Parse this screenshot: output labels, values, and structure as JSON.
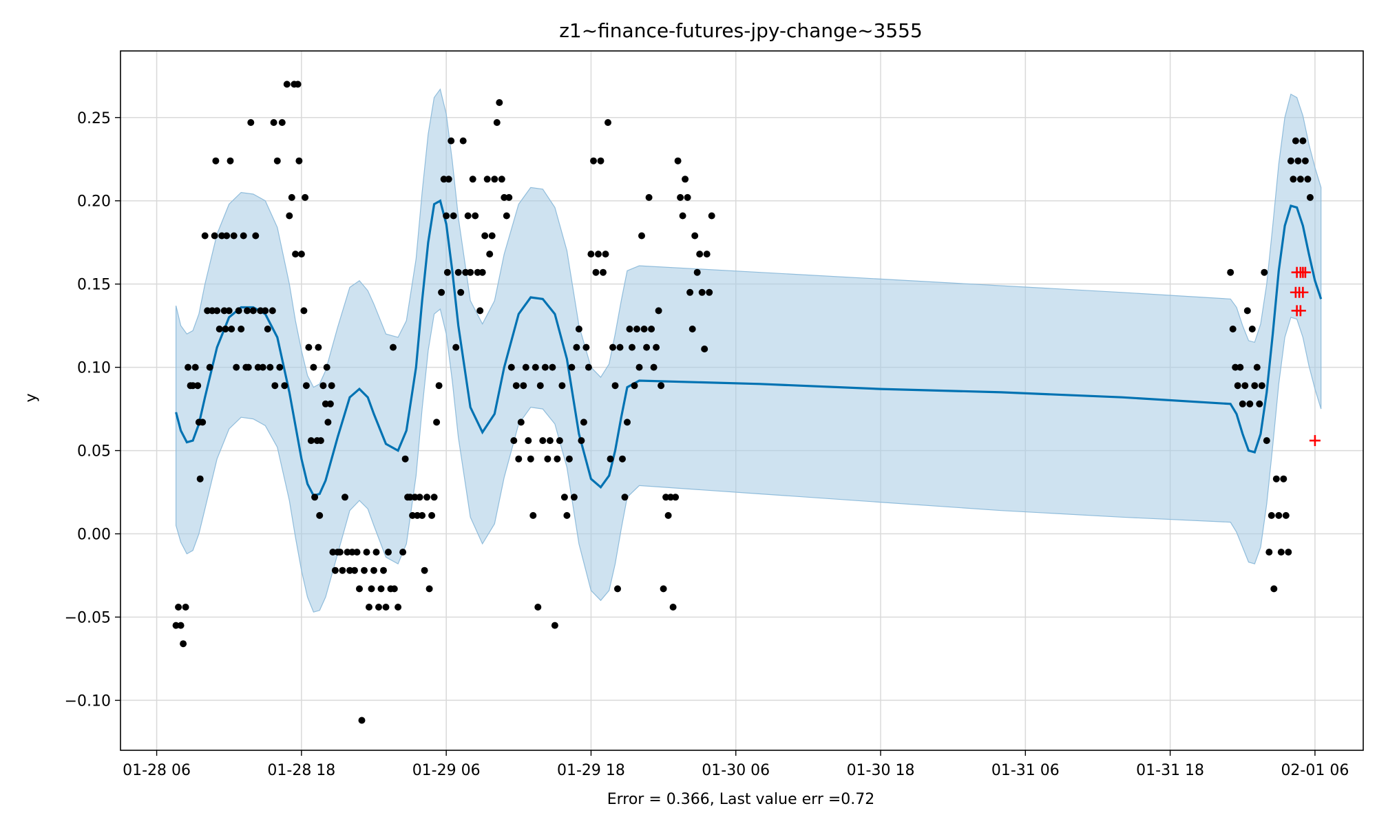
{
  "chart_data": {
    "type": "line",
    "title": "z1~finance-futures-jpy-change~3555",
    "xlabel": "Error = 0.366, Last value err =0.72",
    "ylabel": "y",
    "xlim": [
      -3,
      100
    ],
    "ylim": [
      -0.13,
      0.29
    ],
    "grid": true,
    "colors": {
      "forecast": "#0072b2",
      "band": "#a6cbe3",
      "band_edge": "#8fbcdb",
      "observed": "#000000",
      "holdout": "#ff0000"
    },
    "x_ticks": [
      {
        "x": 0,
        "label": "01-28 06"
      },
      {
        "x": 12,
        "label": "01-28 18"
      },
      {
        "x": 24,
        "label": "01-29 06"
      },
      {
        "x": 36,
        "label": "01-29 18"
      },
      {
        "x": 48,
        "label": "01-30 06"
      },
      {
        "x": 60,
        "label": "01-30 18"
      },
      {
        "x": 72,
        "label": "01-31 06"
      },
      {
        "x": 84,
        "label": "01-31 18"
      },
      {
        "x": 96,
        "label": "02-01 06"
      }
    ],
    "y_ticks": [
      {
        "y": -0.1,
        "label": "−0.10"
      },
      {
        "y": -0.05,
        "label": "−0.05"
      },
      {
        "y": 0.0,
        "label": "0.00"
      },
      {
        "y": 0.05,
        "label": "0.05"
      },
      {
        "y": 0.1,
        "label": "0.10"
      },
      {
        "y": 0.15,
        "label": "0.15"
      },
      {
        "y": 0.2,
        "label": "0.20"
      },
      {
        "y": 0.25,
        "label": "0.25"
      }
    ],
    "forecast": {
      "x": [
        1.6,
        2.0,
        2.5,
        3.0,
        3.5,
        4.0,
        5.0,
        6.0,
        7.0,
        8.0,
        9.0,
        10.0,
        11.0,
        11.5,
        12.0,
        12.5,
        13.0,
        13.5,
        14.0,
        15.0,
        16.0,
        16.8,
        17.5,
        18.0,
        19.0,
        20.0,
        20.7,
        21.5,
        22.0,
        22.5,
        23.0,
        23.5,
        24.0,
        24.5,
        25.0,
        26.0,
        27.0,
        28.0,
        28.8,
        30.0,
        31.0,
        32.0,
        33.0,
        34.0,
        35.0,
        36.0,
        36.8,
        37.5,
        38.0,
        38.5,
        39.0,
        40.0,
        50.0,
        60.0,
        70.0,
        80.0,
        89.0,
        89.5,
        90.0,
        90.5,
        91.0,
        91.5,
        92.0,
        92.5,
        93.0,
        93.5,
        94.0,
        94.5,
        95.0,
        95.5,
        96.0,
        96.5
      ],
      "y": [
        0.073,
        0.062,
        0.055,
        0.056,
        0.066,
        0.082,
        0.112,
        0.13,
        0.136,
        0.136,
        0.132,
        0.118,
        0.085,
        0.065,
        0.045,
        0.03,
        0.023,
        0.024,
        0.032,
        0.058,
        0.082,
        0.087,
        0.082,
        0.072,
        0.054,
        0.05,
        0.062,
        0.1,
        0.14,
        0.175,
        0.198,
        0.2,
        0.186,
        0.158,
        0.125,
        0.076,
        0.061,
        0.072,
        0.1,
        0.132,
        0.142,
        0.141,
        0.132,
        0.105,
        0.06,
        0.033,
        0.028,
        0.035,
        0.05,
        0.07,
        0.088,
        0.092,
        0.09,
        0.087,
        0.085,
        0.082,
        0.078,
        0.072,
        0.06,
        0.05,
        0.049,
        0.06,
        0.085,
        0.12,
        0.158,
        0.185,
        0.197,
        0.196,
        0.185,
        0.168,
        0.152,
        0.141
      ]
    },
    "band": {
      "x": [
        1.6,
        2.0,
        2.5,
        3.0,
        3.5,
        4.0,
        5.0,
        6.0,
        7.0,
        8.0,
        9.0,
        10.0,
        11.0,
        11.5,
        12.0,
        12.5,
        13.0,
        13.5,
        14.0,
        15.0,
        16.0,
        16.8,
        17.5,
        18.0,
        19.0,
        20.0,
        20.7,
        21.5,
        22.0,
        22.5,
        23.0,
        23.5,
        24.0,
        24.5,
        25.0,
        26.0,
        27.0,
        28.0,
        28.8,
        30.0,
        31.0,
        32.0,
        33.0,
        34.0,
        35.0,
        36.0,
        36.8,
        37.5,
        38.0,
        38.5,
        39.0,
        40.0,
        50.0,
        60.0,
        70.0,
        80.0,
        89.0,
        89.5,
        90.0,
        90.5,
        91.0,
        91.5,
        92.0,
        92.5,
        93.0,
        93.5,
        94.0,
        94.5,
        95.0,
        95.5,
        96.0,
        96.5
      ],
      "upper": [
        0.137,
        0.125,
        0.12,
        0.122,
        0.132,
        0.15,
        0.18,
        0.198,
        0.205,
        0.204,
        0.2,
        0.184,
        0.15,
        0.128,
        0.11,
        0.095,
        0.088,
        0.09,
        0.098,
        0.124,
        0.148,
        0.152,
        0.146,
        0.138,
        0.12,
        0.118,
        0.128,
        0.165,
        0.205,
        0.24,
        0.262,
        0.267,
        0.252,
        0.224,
        0.19,
        0.14,
        0.126,
        0.14,
        0.168,
        0.198,
        0.208,
        0.207,
        0.196,
        0.17,
        0.125,
        0.1,
        0.094,
        0.102,
        0.12,
        0.14,
        0.158,
        0.161,
        0.157,
        0.153,
        0.149,
        0.145,
        0.141,
        0.136,
        0.125,
        0.116,
        0.115,
        0.126,
        0.15,
        0.185,
        0.222,
        0.25,
        0.264,
        0.262,
        0.251,
        0.234,
        0.22,
        0.208
      ],
      "lower": [
        0.005,
        -0.005,
        -0.012,
        -0.01,
        0.0,
        0.015,
        0.045,
        0.063,
        0.07,
        0.069,
        0.065,
        0.052,
        0.02,
        -0.002,
        -0.022,
        -0.038,
        -0.047,
        -0.046,
        -0.038,
        -0.012,
        0.014,
        0.02,
        0.015,
        0.005,
        -0.014,
        -0.018,
        -0.006,
        0.035,
        0.075,
        0.11,
        0.132,
        0.135,
        0.12,
        0.092,
        0.058,
        0.01,
        -0.006,
        0.006,
        0.034,
        0.066,
        0.076,
        0.075,
        0.066,
        0.04,
        -0.006,
        -0.034,
        -0.04,
        -0.034,
        -0.018,
        0.003,
        0.022,
        0.029,
        0.024,
        0.019,
        0.014,
        0.01,
        0.007,
        0.001,
        -0.008,
        -0.017,
        -0.018,
        -0.008,
        0.018,
        0.053,
        0.09,
        0.118,
        0.13,
        0.129,
        0.118,
        0.101,
        0.087,
        0.075
      ]
    },
    "observed": [
      [
        1.6,
        -0.055
      ],
      [
        1.8,
        -0.044
      ],
      [
        2.0,
        -0.055
      ],
      [
        2.2,
        -0.066
      ],
      [
        2.4,
        -0.044
      ],
      [
        2.6,
        0.1
      ],
      [
        2.8,
        0.089
      ],
      [
        3.0,
        0.089
      ],
      [
        3.2,
        0.1
      ],
      [
        3.4,
        0.089
      ],
      [
        3.5,
        0.067
      ],
      [
        3.6,
        0.033
      ],
      [
        3.8,
        0.067
      ],
      [
        4.0,
        0.179
      ],
      [
        4.2,
        0.134
      ],
      [
        4.4,
        0.1
      ],
      [
        4.6,
        0.134
      ],
      [
        4.8,
        0.179
      ],
      [
        4.9,
        0.224
      ],
      [
        5.0,
        0.134
      ],
      [
        5.2,
        0.123
      ],
      [
        5.4,
        0.179
      ],
      [
        5.6,
        0.134
      ],
      [
        5.7,
        0.123
      ],
      [
        5.8,
        0.179
      ],
      [
        6.0,
        0.134
      ],
      [
        6.1,
        0.224
      ],
      [
        6.2,
        0.123
      ],
      [
        6.4,
        0.179
      ],
      [
        6.6,
        0.1
      ],
      [
        6.8,
        0.134
      ],
      [
        7.0,
        0.123
      ],
      [
        7.2,
        0.179
      ],
      [
        7.4,
        0.1
      ],
      [
        7.5,
        0.134
      ],
      [
        7.6,
        0.1
      ],
      [
        7.8,
        0.247
      ],
      [
        8.0,
        0.134
      ],
      [
        8.2,
        0.179
      ],
      [
        8.4,
        0.1
      ],
      [
        8.6,
        0.134
      ],
      [
        8.8,
        0.1
      ],
      [
        9.0,
        0.134
      ],
      [
        9.2,
        0.123
      ],
      [
        9.4,
        0.1
      ],
      [
        9.6,
        0.134
      ],
      [
        9.7,
        0.247
      ],
      [
        9.8,
        0.089
      ],
      [
        10.0,
        0.224
      ],
      [
        10.2,
        0.1
      ],
      [
        10.4,
        0.247
      ],
      [
        10.6,
        0.089
      ],
      [
        10.8,
        0.27
      ],
      [
        11.0,
        0.191
      ],
      [
        11.2,
        0.202
      ],
      [
        11.4,
        0.27
      ],
      [
        11.5,
        0.168
      ],
      [
        11.7,
        0.27
      ],
      [
        11.8,
        0.224
      ],
      [
        12.0,
        0.168
      ],
      [
        12.2,
        0.134
      ],
      [
        12.3,
        0.202
      ],
      [
        12.4,
        0.089
      ],
      [
        12.6,
        0.112
      ],
      [
        12.8,
        0.056
      ],
      [
        13.0,
        0.1
      ],
      [
        13.1,
        0.022
      ],
      [
        13.3,
        0.056
      ],
      [
        13.4,
        0.112
      ],
      [
        13.5,
        0.011
      ],
      [
        13.6,
        0.056
      ],
      [
        13.8,
        0.089
      ],
      [
        14.0,
        0.078
      ],
      [
        14.1,
        0.1
      ],
      [
        14.2,
        0.067
      ],
      [
        14.4,
        0.078
      ],
      [
        14.5,
        0.089
      ],
      [
        14.6,
        -0.011
      ],
      [
        14.8,
        -0.022
      ],
      [
        15.0,
        -0.011
      ],
      [
        15.2,
        -0.011
      ],
      [
        15.4,
        -0.022
      ],
      [
        15.6,
        0.022
      ],
      [
        15.8,
        -0.011
      ],
      [
        16.0,
        -0.022
      ],
      [
        16.2,
        -0.011
      ],
      [
        16.4,
        -0.022
      ],
      [
        16.6,
        -0.011
      ],
      [
        16.8,
        -0.033
      ],
      [
        17.0,
        -0.112
      ],
      [
        17.2,
        -0.022
      ],
      [
        17.4,
        -0.011
      ],
      [
        17.6,
        -0.044
      ],
      [
        17.8,
        -0.033
      ],
      [
        18.0,
        -0.022
      ],
      [
        18.2,
        -0.011
      ],
      [
        18.4,
        -0.044
      ],
      [
        18.6,
        -0.033
      ],
      [
        18.8,
        -0.022
      ],
      [
        19.0,
        -0.044
      ],
      [
        19.2,
        -0.011
      ],
      [
        19.4,
        -0.033
      ],
      [
        19.6,
        0.112
      ],
      [
        19.7,
        -0.033
      ],
      [
        20.0,
        -0.044
      ],
      [
        20.4,
        -0.011
      ],
      [
        20.6,
        0.045
      ],
      [
        20.8,
        0.022
      ],
      [
        21.0,
        0.022
      ],
      [
        21.2,
        0.011
      ],
      [
        21.4,
        0.022
      ],
      [
        21.6,
        0.011
      ],
      [
        21.8,
        0.022
      ],
      [
        22.0,
        0.011
      ],
      [
        22.2,
        -0.022
      ],
      [
        22.4,
        0.022
      ],
      [
        22.6,
        -0.033
      ],
      [
        22.8,
        0.011
      ],
      [
        23.0,
        0.022
      ],
      [
        23.2,
        0.067
      ],
      [
        23.4,
        0.089
      ],
      [
        23.6,
        0.145
      ],
      [
        23.8,
        0.213
      ],
      [
        24.0,
        0.191
      ],
      [
        24.1,
        0.157
      ],
      [
        24.2,
        0.213
      ],
      [
        24.4,
        0.236
      ],
      [
        24.6,
        0.191
      ],
      [
        24.8,
        0.112
      ],
      [
        25.0,
        0.157
      ],
      [
        25.2,
        0.145
      ],
      [
        25.4,
        0.236
      ],
      [
        25.6,
        0.157
      ],
      [
        25.8,
        0.191
      ],
      [
        26.0,
        0.157
      ],
      [
        26.2,
        0.213
      ],
      [
        26.4,
        0.191
      ],
      [
        26.6,
        0.157
      ],
      [
        26.8,
        0.134
      ],
      [
        27.0,
        0.157
      ],
      [
        27.2,
        0.179
      ],
      [
        27.4,
        0.213
      ],
      [
        27.6,
        0.168
      ],
      [
        27.8,
        0.179
      ],
      [
        28.0,
        0.213
      ],
      [
        28.2,
        0.247
      ],
      [
        28.4,
        0.259
      ],
      [
        28.6,
        0.213
      ],
      [
        28.8,
        0.202
      ],
      [
        29.0,
        0.191
      ],
      [
        29.2,
        0.202
      ],
      [
        29.4,
        0.1
      ],
      [
        29.6,
        0.056
      ],
      [
        29.8,
        0.089
      ],
      [
        30.0,
        0.045
      ],
      [
        30.2,
        0.067
      ],
      [
        30.4,
        0.089
      ],
      [
        30.6,
        0.1
      ],
      [
        30.8,
        0.056
      ],
      [
        31.0,
        0.045
      ],
      [
        31.2,
        0.011
      ],
      [
        31.4,
        0.1
      ],
      [
        31.6,
        -0.044
      ],
      [
        31.8,
        0.089
      ],
      [
        32.0,
        0.056
      ],
      [
        32.2,
        0.1
      ],
      [
        32.4,
        0.045
      ],
      [
        32.6,
        0.056
      ],
      [
        32.8,
        0.1
      ],
      [
        33.0,
        -0.055
      ],
      [
        33.2,
        0.045
      ],
      [
        33.4,
        0.056
      ],
      [
        33.6,
        0.089
      ],
      [
        33.8,
        0.022
      ],
      [
        34.0,
        0.011
      ],
      [
        34.2,
        0.045
      ],
      [
        34.4,
        0.1
      ],
      [
        34.6,
        0.022
      ],
      [
        34.8,
        0.112
      ],
      [
        35.0,
        0.123
      ],
      [
        35.2,
        0.056
      ],
      [
        35.4,
        0.067
      ],
      [
        35.6,
        0.112
      ],
      [
        35.8,
        0.1
      ],
      [
        36.0,
        0.168
      ],
      [
        36.2,
        0.224
      ],
      [
        36.4,
        0.157
      ],
      [
        36.6,
        0.168
      ],
      [
        36.8,
        0.224
      ],
      [
        37.0,
        0.157
      ],
      [
        37.2,
        0.168
      ],
      [
        37.4,
        0.247
      ],
      [
        37.6,
        0.045
      ],
      [
        37.8,
        0.112
      ],
      [
        38.0,
        0.089
      ],
      [
        38.2,
        -0.033
      ],
      [
        38.4,
        0.112
      ],
      [
        38.6,
        0.045
      ],
      [
        38.8,
        0.022
      ],
      [
        39.0,
        0.067
      ],
      [
        39.2,
        0.123
      ],
      [
        39.4,
        0.112
      ],
      [
        39.6,
        0.089
      ],
      [
        39.8,
        0.123
      ],
      [
        40.0,
        0.1
      ],
      [
        40.2,
        0.179
      ],
      [
        40.4,
        0.123
      ],
      [
        40.6,
        0.112
      ],
      [
        40.8,
        0.202
      ],
      [
        41.0,
        0.123
      ],
      [
        41.2,
        0.1
      ],
      [
        41.4,
        0.112
      ],
      [
        41.6,
        0.134
      ],
      [
        41.8,
        0.089
      ],
      [
        42.0,
        -0.033
      ],
      [
        42.2,
        0.022
      ],
      [
        42.4,
        0.011
      ],
      [
        42.6,
        0.022
      ],
      [
        42.8,
        -0.044
      ],
      [
        43.0,
        0.022
      ],
      [
        43.2,
        0.224
      ],
      [
        43.4,
        0.202
      ],
      [
        43.6,
        0.191
      ],
      [
        43.8,
        0.213
      ],
      [
        44.0,
        0.202
      ],
      [
        44.2,
        0.145
      ],
      [
        44.4,
        0.123
      ],
      [
        44.6,
        0.179
      ],
      [
        44.8,
        0.157
      ],
      [
        45.0,
        0.168
      ],
      [
        45.2,
        0.145
      ],
      [
        45.4,
        0.111
      ],
      [
        45.6,
        0.168
      ],
      [
        45.8,
        0.145
      ],
      [
        46.0,
        0.191
      ]
    ],
    "holdout": [
      [
        94.5,
        0.157
      ],
      [
        94.8,
        0.157
      ],
      [
        95.0,
        0.157
      ],
      [
        94.4,
        0.145
      ],
      [
        94.7,
        0.145
      ],
      [
        95.0,
        0.145
      ],
      [
        94.5,
        0.134
      ],
      [
        94.8,
        0.134
      ],
      [
        95.2,
        0.157
      ],
      [
        96.0,
        0.056
      ]
    ],
    "observed_late": [
      [
        89.0,
        0.157
      ],
      [
        89.2,
        0.123
      ],
      [
        89.4,
        0.1
      ],
      [
        89.6,
        0.089
      ],
      [
        89.8,
        0.1
      ],
      [
        90.0,
        0.078
      ],
      [
        90.2,
        0.089
      ],
      [
        90.4,
        0.134
      ],
      [
        90.6,
        0.078
      ],
      [
        90.8,
        0.123
      ],
      [
        91.0,
        0.089
      ],
      [
        91.2,
        0.1
      ],
      [
        91.4,
        0.078
      ],
      [
        91.6,
        0.089
      ],
      [
        91.8,
        0.157
      ],
      [
        92.0,
        0.056
      ],
      [
        92.2,
        -0.011
      ],
      [
        92.4,
        0.011
      ],
      [
        92.6,
        -0.033
      ],
      [
        92.8,
        0.033
      ],
      [
        93.0,
        0.011
      ],
      [
        93.2,
        -0.011
      ],
      [
        93.4,
        0.033
      ],
      [
        93.6,
        0.011
      ],
      [
        93.8,
        -0.011
      ],
      [
        94.0,
        0.224
      ],
      [
        94.2,
        0.213
      ],
      [
        94.4,
        0.236
      ],
      [
        94.6,
        0.224
      ],
      [
        94.8,
        0.213
      ],
      [
        95.0,
        0.236
      ],
      [
        95.2,
        0.224
      ],
      [
        95.4,
        0.213
      ],
      [
        95.6,
        0.202
      ]
    ]
  }
}
